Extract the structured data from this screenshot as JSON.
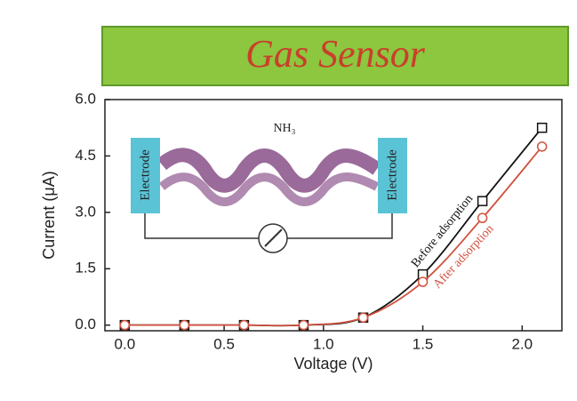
{
  "chart_data": {
    "type": "line",
    "title": "Gas Sensor",
    "x_label": "Voltage (V)",
    "y_label": "Current (μA)",
    "x": [
      0.0,
      0.3,
      0.6,
      0.9,
      1.2,
      1.5,
      1.8,
      2.1
    ],
    "series": [
      {
        "name": "Before adsorption",
        "color": "#111111",
        "marker": "square",
        "values": [
          0.0,
          0.0,
          0.0,
          0.0,
          0.2,
          1.35,
          3.3,
          5.25
        ]
      },
      {
        "name": "After adsorption",
        "color": "#d0523e",
        "marker": "circle",
        "values": [
          0.0,
          0.0,
          0.0,
          0.0,
          0.2,
          1.15,
          2.85,
          4.75
        ]
      }
    ],
    "xlim": [
      -0.1,
      2.2
    ],
    "ylim": [
      -0.15,
      6.0
    ],
    "xticks": [
      {
        "value": 0,
        "label": "0.0"
      },
      {
        "value": 0.5,
        "label": "0.5"
      },
      {
        "value": 1,
        "label": "1.0"
      },
      {
        "value": 1.5,
        "label": "1.5"
      },
      {
        "value": 2,
        "label": "2.0"
      }
    ],
    "yticks": [
      {
        "value": 0,
        "label": "0.0"
      },
      {
        "value": 1.5,
        "label": "1.5"
      },
      {
        "value": 3,
        "label": "3.0"
      },
      {
        "value": 4.5,
        "label": "4.5"
      },
      {
        "value": 6,
        "label": "6.0"
      }
    ],
    "inset": {
      "left_electrode": "Electrode",
      "right_electrode": "Electrode",
      "gas": "NH₃"
    }
  }
}
